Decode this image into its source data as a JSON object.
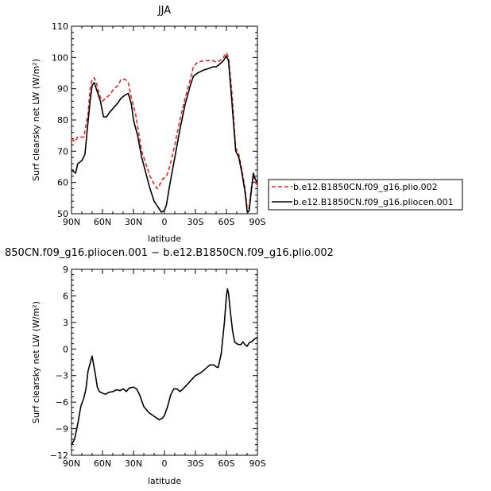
{
  "chart_data": [
    {
      "type": "line",
      "title": "JJA",
      "xlabel": "latitude",
      "ylabel": "Surf clearsky net LW (W/m²)",
      "xlim": [
        90,
        -90
      ],
      "ylim": [
        50,
        110
      ],
      "x_ticks": [
        90,
        60,
        30,
        0,
        -30,
        -60,
        -90
      ],
      "x_tick_labels": [
        "90N",
        "60N",
        "30N",
        "0",
        "30S",
        "60S",
        "90S"
      ],
      "y_ticks": [
        50,
        60,
        70,
        80,
        90,
        100,
        110
      ],
      "y_tick_labels": [
        "50",
        "60",
        "70",
        "80",
        "90",
        "100",
        "110"
      ],
      "legend_position": "right",
      "series": [
        {
          "name": "b.e12.B1850CN.f09_g16.plio.002",
          "color": "#e8241e",
          "dash": "dashed",
          "points": [
            [
              90,
              74
            ],
            [
              87,
              73
            ],
            [
              84,
              74.5
            ],
            [
              78,
              74.5
            ],
            [
              74,
              82
            ],
            [
              72,
              90
            ],
            [
              70,
              93
            ],
            [
              68,
              93.5
            ],
            [
              66,
              92
            ],
            [
              63,
              88
            ],
            [
              60,
              86
            ],
            [
              57,
              87
            ],
            [
              53,
              88
            ],
            [
              49,
              90
            ],
            [
              45,
              91
            ],
            [
              42,
              93
            ],
            [
              38,
              93
            ],
            [
              35,
              92
            ],
            [
              32,
              87
            ],
            [
              28,
              82
            ],
            [
              25,
              76
            ],
            [
              22,
              70
            ],
            [
              18,
              66
            ],
            [
              14,
              62
            ],
            [
              10,
              59.5
            ],
            [
              7,
              58
            ],
            [
              5,
              59
            ],
            [
              2,
              61
            ],
            [
              -2,
              62
            ],
            [
              -5,
              65
            ],
            [
              -10,
              72
            ],
            [
              -15,
              80
            ],
            [
              -20,
              87
            ],
            [
              -25,
              93
            ],
            [
              -28,
              97
            ],
            [
              -32,
              98.5
            ],
            [
              -38,
              99
            ],
            [
              -43,
              99
            ],
            [
              -47,
              99
            ],
            [
              -50,
              98.5
            ],
            [
              -54,
              99
            ],
            [
              -57,
              100
            ],
            [
              -60,
              101.5
            ],
            [
              -62,
              100
            ],
            [
              -65,
              90
            ],
            [
              -69,
              71
            ],
            [
              -72,
              69
            ],
            [
              -75,
              64
            ],
            [
              -78,
              58
            ],
            [
              -80,
              52
            ],
            [
              -81,
              51.5
            ],
            [
              -82,
              52
            ],
            [
              -84,
              58
            ],
            [
              -86,
              62
            ],
            [
              -88,
              60
            ],
            [
              -90,
              59
            ]
          ]
        },
        {
          "name": "b.e12.B1850CN.f09_g16.pliocen.001",
          "color": "#000000",
          "dash": "solid",
          "points": [
            [
              90,
              64
            ],
            [
              88,
              63.5
            ],
            [
              86,
              63
            ],
            [
              84,
              66
            ],
            [
              80,
              67
            ],
            [
              77,
              69
            ],
            [
              75,
              76
            ],
            [
              72,
              86
            ],
            [
              70,
              91
            ],
            [
              68,
              92
            ],
            [
              66,
              90
            ],
            [
              62,
              86
            ],
            [
              59,
              81
            ],
            [
              56,
              81
            ],
            [
              53,
              82.5
            ],
            [
              49,
              84
            ],
            [
              45,
              85.5
            ],
            [
              42,
              87
            ],
            [
              38,
              88
            ],
            [
              35,
              88.5
            ],
            [
              32,
              85
            ],
            [
              30,
              80
            ],
            [
              26,
              75
            ],
            [
              22,
              68
            ],
            [
              18,
              63
            ],
            [
              14,
              58
            ],
            [
              10,
              54
            ],
            [
              6,
              52
            ],
            [
              3,
              50.5
            ],
            [
              0,
              51
            ],
            [
              -2,
              53
            ],
            [
              -5,
              59
            ],
            [
              -10,
              68
            ],
            [
              -15,
              77
            ],
            [
              -20,
              85
            ],
            [
              -25,
              91
            ],
            [
              -28,
              94
            ],
            [
              -32,
              95
            ],
            [
              -38,
              96
            ],
            [
              -43,
              96.5
            ],
            [
              -47,
              97
            ],
            [
              -50,
              97
            ],
            [
              -54,
              98
            ],
            [
              -57,
              99
            ],
            [
              -60,
              100.5
            ],
            [
              -62,
              99
            ],
            [
              -65,
              87
            ],
            [
              -69,
              70
            ],
            [
              -72,
              68
            ],
            [
              -75,
              63
            ],
            [
              -78,
              57
            ],
            [
              -80,
              51
            ],
            [
              -81,
              50.5
            ],
            [
              -82,
              51
            ],
            [
              -84,
              57
            ],
            [
              -86,
              63
            ],
            [
              -88,
              61
            ],
            [
              -90,
              60
            ]
          ]
        }
      ]
    },
    {
      "type": "line",
      "title": "850CN.f09_g16.pliocen.001 − b.e12.B1850CN.f09_g16.plio.002",
      "xlabel": "latitude",
      "ylabel": "Surf clearsky net LW (W/m²)",
      "xlim": [
        90,
        -90
      ],
      "ylim": [
        -12,
        9
      ],
      "x_ticks": [
        90,
        60,
        30,
        0,
        -30,
        -60,
        -90
      ],
      "x_tick_labels": [
        "90N",
        "60N",
        "30N",
        "0",
        "30S",
        "60S",
        "90S"
      ],
      "y_ticks": [
        -12,
        -9,
        -6,
        -3,
        0,
        3,
        6,
        9
      ],
      "y_tick_labels": [
        "−12",
        "−9",
        "−6",
        "−3",
        "0",
        "3",
        "6",
        "9"
      ],
      "series": [
        {
          "color": "#000000",
          "dash": "solid",
          "points": [
            [
              90,
              -10.8
            ],
            [
              87,
              -10.2
            ],
            [
              84,
              -8.5
            ],
            [
              81,
              -6.5
            ],
            [
              78,
              -5.5
            ],
            [
              76,
              -4.5
            ],
            [
              74,
              -2.5
            ],
            [
              71,
              -1.2
            ],
            [
              70,
              -0.8
            ],
            [
              69,
              -1.5
            ],
            [
              67,
              -2.8
            ],
            [
              65,
              -4.3
            ],
            [
              63,
              -4.8
            ],
            [
              60,
              -5
            ],
            [
              57,
              -5.1
            ],
            [
              54,
              -4.9
            ],
            [
              50,
              -4.8
            ],
            [
              46,
              -4.6
            ],
            [
              43,
              -4.7
            ],
            [
              40,
              -4.5
            ],
            [
              37,
              -4.8
            ],
            [
              34,
              -4.4
            ],
            [
              30,
              -4.3
            ],
            [
              27,
              -4.5
            ],
            [
              24,
              -5.2
            ],
            [
              20,
              -6.5
            ],
            [
              15,
              -7.2
            ],
            [
              10,
              -7.6
            ],
            [
              5,
              -8
            ],
            [
              2,
              -7.8
            ],
            [
              0,
              -7.5
            ],
            [
              -3,
              -6.5
            ],
            [
              -6,
              -5.2
            ],
            [
              -9,
              -4.5
            ],
            [
              -12,
              -4.5
            ],
            [
              -15,
              -4.8
            ],
            [
              -18,
              -4.5
            ],
            [
              -22,
              -4
            ],
            [
              -26,
              -3.5
            ],
            [
              -30,
              -3
            ],
            [
              -35,
              -2.7
            ],
            [
              -40,
              -2.2
            ],
            [
              -44,
              -1.8
            ],
            [
              -48,
              -1.8
            ],
            [
              -50,
              -2
            ],
            [
              -52,
              -2.1
            ],
            [
              -55,
              -0.5
            ],
            [
              -58,
              3
            ],
            [
              -60,
              6
            ],
            [
              -61,
              6.8
            ],
            [
              -62,
              6.3
            ],
            [
              -64,
              4
            ],
            [
              -66,
              2
            ],
            [
              -68,
              0.8
            ],
            [
              -70,
              0.6
            ],
            [
              -72,
              0.5
            ],
            [
              -74,
              0.5
            ],
            [
              -76,
              0.8
            ],
            [
              -78,
              0.5
            ],
            [
              -80,
              0.3
            ],
            [
              -82,
              0.7
            ],
            [
              -84,
              0.8
            ],
            [
              -86,
              1
            ],
            [
              -88,
              1.2
            ],
            [
              -90,
              1.3
            ]
          ]
        }
      ]
    }
  ]
}
